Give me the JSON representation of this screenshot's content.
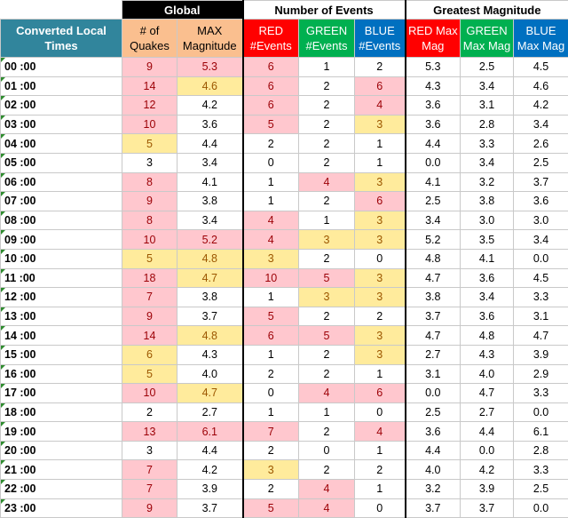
{
  "headers": {
    "global": "Global",
    "number_of_events": "Number of Events",
    "greatest_magnitude": "Greatest Magnitude",
    "converted_local_times": "Converted Local Times",
    "num_quakes": "# of Quakes",
    "max_magnitude": "MAX Magnitude",
    "red_events": "RED #Events",
    "green_events": "GREEN #Events",
    "blue_events": "BLUE #Events",
    "red_max": "RED Max Mag",
    "green_max": "GREEN Max Mag",
    "blue_max": "BLUE Max Mag"
  },
  "colors": {
    "teal_header": "#31859c",
    "orange_header": "#fabf8f",
    "red_header": "#ff0000",
    "green_header": "#00b050",
    "blue_header": "#0070c0",
    "pink_highlight": "#ffc7ce",
    "yellow_highlight": "#ffeb9c"
  },
  "rows": [
    {
      "time": "00 :00",
      "quakes": "9",
      "maxmag": "5.3",
      "red": "6",
      "green": "1",
      "blue": "2",
      "redmax": "5.3",
      "greenmax": "2.5",
      "bluemax": "4.5",
      "hl": [
        "pink",
        "pink",
        "pink",
        "",
        "",
        ""
      ]
    },
    {
      "time": "01 :00",
      "quakes": "14",
      "maxmag": "4.6",
      "red": "6",
      "green": "2",
      "blue": "6",
      "redmax": "4.3",
      "greenmax": "3.4",
      "bluemax": "4.6",
      "hl": [
        "pink",
        "yel",
        "pink",
        "",
        "pink",
        ""
      ]
    },
    {
      "time": "02 :00",
      "quakes": "12",
      "maxmag": "4.2",
      "red": "6",
      "green": "2",
      "blue": "4",
      "redmax": "3.6",
      "greenmax": "3.1",
      "bluemax": "4.2",
      "hl": [
        "pink",
        "",
        "pink",
        "",
        "pink",
        ""
      ]
    },
    {
      "time": "03 :00",
      "quakes": "10",
      "maxmag": "3.6",
      "red": "5",
      "green": "2",
      "blue": "3",
      "redmax": "3.6",
      "greenmax": "2.8",
      "bluemax": "3.4",
      "hl": [
        "pink",
        "",
        "pink",
        "",
        "yel",
        ""
      ]
    },
    {
      "time": "04 :00",
      "quakes": "5",
      "maxmag": "4.4",
      "red": "2",
      "green": "2",
      "blue": "1",
      "redmax": "4.4",
      "greenmax": "3.3",
      "bluemax": "2.6",
      "hl": [
        "yel",
        "",
        "",
        "",
        "",
        ""
      ]
    },
    {
      "time": "05 :00",
      "quakes": "3",
      "maxmag": "3.4",
      "red": "0",
      "green": "2",
      "blue": "1",
      "redmax": "0.0",
      "greenmax": "3.4",
      "bluemax": "2.5",
      "hl": [
        "",
        "",
        "",
        "",
        "",
        ""
      ]
    },
    {
      "time": "06 :00",
      "quakes": "8",
      "maxmag": "4.1",
      "red": "1",
      "green": "4",
      "blue": "3",
      "redmax": "4.1",
      "greenmax": "3.2",
      "bluemax": "3.7",
      "hl": [
        "pink",
        "",
        "",
        "pink",
        "yel",
        ""
      ]
    },
    {
      "time": "07 :00",
      "quakes": "9",
      "maxmag": "3.8",
      "red": "1",
      "green": "2",
      "blue": "6",
      "redmax": "2.5",
      "greenmax": "3.8",
      "bluemax": "3.6",
      "hl": [
        "pink",
        "",
        "",
        "",
        "pink",
        ""
      ]
    },
    {
      "time": "08 :00",
      "quakes": "8",
      "maxmag": "3.4",
      "red": "4",
      "green": "1",
      "blue": "3",
      "redmax": "3.4",
      "greenmax": "3.0",
      "bluemax": "3.0",
      "hl": [
        "pink",
        "",
        "pink",
        "",
        "yel",
        ""
      ]
    },
    {
      "time": "09 :00",
      "quakes": "10",
      "maxmag": "5.2",
      "red": "4",
      "green": "3",
      "blue": "3",
      "redmax": "5.2",
      "greenmax": "3.5",
      "bluemax": "3.4",
      "hl": [
        "pink",
        "pink",
        "pink",
        "yel",
        "yel",
        ""
      ]
    },
    {
      "time": "10 :00",
      "quakes": "5",
      "maxmag": "4.8",
      "red": "3",
      "green": "2",
      "blue": "0",
      "redmax": "4.8",
      "greenmax": "4.1",
      "bluemax": "0.0",
      "hl": [
        "yel",
        "yel",
        "yel",
        "",
        "",
        ""
      ]
    },
    {
      "time": "11 :00",
      "quakes": "18",
      "maxmag": "4.7",
      "red": "10",
      "green": "5",
      "blue": "3",
      "redmax": "4.7",
      "greenmax": "3.6",
      "bluemax": "4.5",
      "hl": [
        "pink",
        "yel",
        "pink",
        "pink",
        "yel",
        ""
      ]
    },
    {
      "time": "12 :00",
      "quakes": "7",
      "maxmag": "3.8",
      "red": "1",
      "green": "3",
      "blue": "3",
      "redmax": "3.8",
      "greenmax": "3.4",
      "bluemax": "3.3",
      "hl": [
        "pink",
        "",
        "",
        "yel",
        "yel",
        ""
      ]
    },
    {
      "time": "13 :00",
      "quakes": "9",
      "maxmag": "3.7",
      "red": "5",
      "green": "2",
      "blue": "2",
      "redmax": "3.7",
      "greenmax": "3.6",
      "bluemax": "3.1",
      "hl": [
        "pink",
        "",
        "pink",
        "",
        "",
        ""
      ]
    },
    {
      "time": "14 :00",
      "quakes": "14",
      "maxmag": "4.8",
      "red": "6",
      "green": "5",
      "blue": "3",
      "redmax": "4.7",
      "greenmax": "4.8",
      "bluemax": "4.7",
      "hl": [
        "pink",
        "yel",
        "pink",
        "pink",
        "yel",
        ""
      ]
    },
    {
      "time": "15 :00",
      "quakes": "6",
      "maxmag": "4.3",
      "red": "1",
      "green": "2",
      "blue": "3",
      "redmax": "2.7",
      "greenmax": "4.3",
      "bluemax": "3.9",
      "hl": [
        "yel",
        "",
        "",
        "",
        "yel",
        ""
      ]
    },
    {
      "time": "16 :00",
      "quakes": "5",
      "maxmag": "4.0",
      "red": "2",
      "green": "2",
      "blue": "1",
      "redmax": "3.1",
      "greenmax": "4.0",
      "bluemax": "2.9",
      "hl": [
        "yel",
        "",
        "",
        "",
        "",
        ""
      ]
    },
    {
      "time": "17 :00",
      "quakes": "10",
      "maxmag": "4.7",
      "red": "0",
      "green": "4",
      "blue": "6",
      "redmax": "0.0",
      "greenmax": "4.7",
      "bluemax": "3.3",
      "hl": [
        "pink",
        "yel",
        "",
        "pink",
        "pink",
        ""
      ]
    },
    {
      "time": "18 :00",
      "quakes": "2",
      "maxmag": "2.7",
      "red": "1",
      "green": "1",
      "blue": "0",
      "redmax": "2.5",
      "greenmax": "2.7",
      "bluemax": "0.0",
      "hl": [
        "",
        "",
        "",
        "",
        "",
        ""
      ]
    },
    {
      "time": "19 :00",
      "quakes": "13",
      "maxmag": "6.1",
      "red": "7",
      "green": "2",
      "blue": "4",
      "redmax": "3.6",
      "greenmax": "4.4",
      "bluemax": "6.1",
      "hl": [
        "pink",
        "pink",
        "pink",
        "",
        "pink",
        ""
      ]
    },
    {
      "time": "20 :00",
      "quakes": "3",
      "maxmag": "4.4",
      "red": "2",
      "green": "0",
      "blue": "1",
      "redmax": "4.4",
      "greenmax": "0.0",
      "bluemax": "2.8",
      "hl": [
        "",
        "",
        "",
        "",
        "",
        ""
      ]
    },
    {
      "time": "21 :00",
      "quakes": "7",
      "maxmag": "4.2",
      "red": "3",
      "green": "2",
      "blue": "2",
      "redmax": "4.0",
      "greenmax": "4.2",
      "bluemax": "3.3",
      "hl": [
        "pink",
        "",
        "yel",
        "",
        "",
        ""
      ]
    },
    {
      "time": "22 :00",
      "quakes": "7",
      "maxmag": "3.9",
      "red": "2",
      "green": "4",
      "blue": "1",
      "redmax": "3.2",
      "greenmax": "3.9",
      "bluemax": "2.5",
      "hl": [
        "pink",
        "",
        "",
        "pink",
        "",
        ""
      ]
    },
    {
      "time": "23 :00",
      "quakes": "9",
      "maxmag": "3.7",
      "red": "5",
      "green": "4",
      "blue": "0",
      "redmax": "3.7",
      "greenmax": "3.7",
      "bluemax": "0.0",
      "hl": [
        "pink",
        "",
        "pink",
        "pink",
        "",
        ""
      ]
    }
  ]
}
